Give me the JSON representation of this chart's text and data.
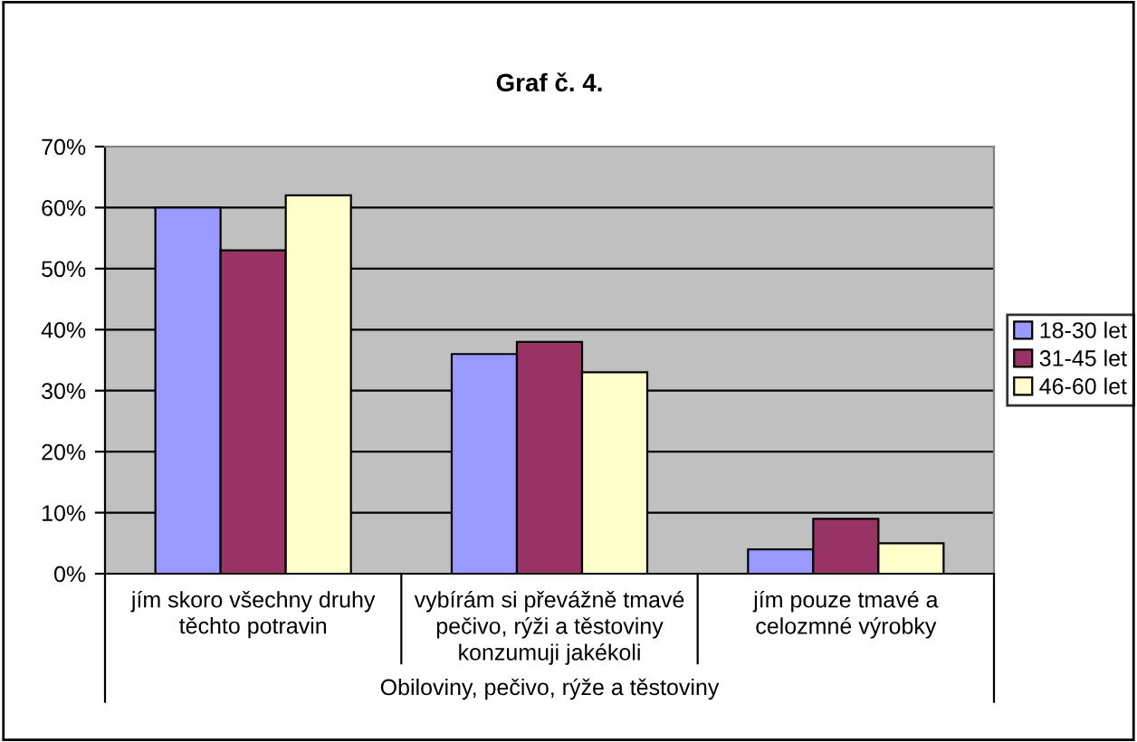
{
  "chart_data": {
    "type": "bar",
    "title": "Graf č. 4.",
    "xlabel": "Obiloviny, pečivo, rýže a těstoviny",
    "categories": [
      "jím skoro všechny druhy\ntěchto potravin",
      "vybírám si převážně tmavé\npečivo, rýži a těstoviny\nkonzumuji jakékoli",
      "jím pouze tmavé a\ncelozmné výrobky"
    ],
    "series": [
      {
        "name": "18-30 let",
        "color": "#9999ff",
        "values": [
          60,
          36,
          4
        ]
      },
      {
        "name": "31-45 let",
        "color": "#993366",
        "values": [
          53,
          38,
          9
        ]
      },
      {
        "name": "46-60 let",
        "color": "#ffffcc",
        "values": [
          62,
          33,
          5
        ]
      }
    ],
    "ylim": [
      0,
      70
    ],
    "yticks": [
      {
        "value": 0,
        "label": "0%"
      },
      {
        "value": 10,
        "label": "10%"
      },
      {
        "value": 20,
        "label": "20%"
      },
      {
        "value": 30,
        "label": "30%"
      },
      {
        "value": 40,
        "label": "40%"
      },
      {
        "value": 50,
        "label": "50%"
      },
      {
        "value": 60,
        "label": "60%"
      },
      {
        "value": 70,
        "label": "70%"
      }
    ],
    "grid": "y",
    "legend": "right"
  }
}
